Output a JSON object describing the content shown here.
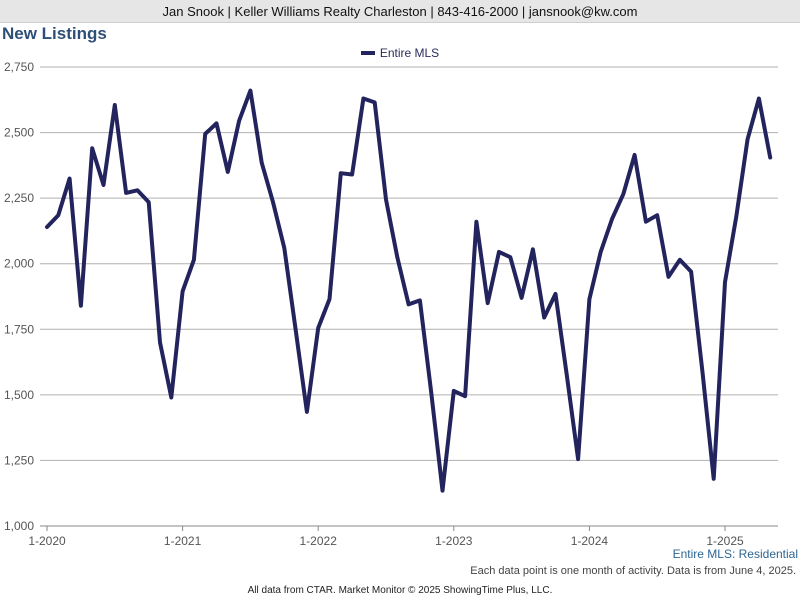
{
  "header": {
    "agent_line": "Jan Snook | Keller Williams Realty Charleston | 843-416-2000 | jansnook@kw.com"
  },
  "footer": {
    "subtitle": "Entire MLS: Residential",
    "note": "Each data point is one month of activity. Data is from June 4, 2025.",
    "credit": "All data from CTAR. Market Monitor © 2025 ShowingTime Plus, LLC."
  },
  "colors": {
    "line": "#23235e",
    "title": "#2e4f77",
    "grid": "#b0b0b0"
  },
  "chart_data": {
    "type": "line",
    "title": "New Listings",
    "legend_position": "top-center",
    "grid": true,
    "ylim": [
      1000,
      2750
    ],
    "y_ticks": [
      1000,
      1250,
      1500,
      1750,
      2000,
      2250,
      2500,
      2750
    ],
    "y_tick_labels": [
      "1,000",
      "1,250",
      "1,500",
      "1,750",
      "2,000",
      "2,250",
      "2,500",
      "2,750"
    ],
    "x_tick_labels": [
      "1-2020",
      "1-2021",
      "1-2022",
      "1-2023",
      "1-2024",
      "1-2025"
    ],
    "x_start": "2020-01",
    "x_end": "2025-05",
    "series": [
      {
        "name": "Entire MLS",
        "values": [
          2140,
          2185,
          2325,
          1840,
          2440,
          2300,
          2605,
          2270,
          2280,
          2235,
          1700,
          1490,
          1895,
          2015,
          2495,
          2535,
          2350,
          2545,
          2660,
          2385,
          2235,
          2060,
          1750,
          1435,
          1755,
          1865,
          2345,
          2340,
          2630,
          2615,
          2245,
          2025,
          1845,
          1860,
          1510,
          1135,
          1515,
          1495,
          2160,
          1850,
          2045,
          2025,
          1870,
          2055,
          1795,
          1885,
          1575,
          1255,
          1865,
          2045,
          2170,
          2265,
          2415,
          2160,
          2185,
          1950,
          2015,
          1970,
          1590,
          1180,
          1930,
          2180,
          2475,
          2630,
          2405
        ]
      }
    ]
  }
}
